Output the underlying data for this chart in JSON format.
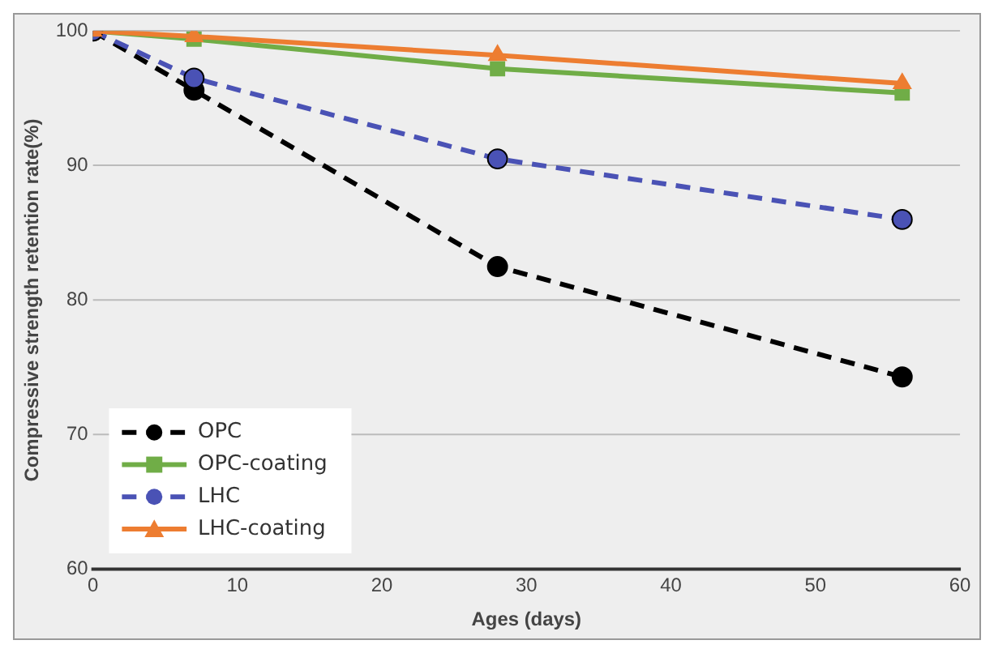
{
  "chart_data": {
    "type": "line",
    "xlabel": "Ages (days)",
    "ylabel": "Compressive strength retention rate(%)",
    "xlim": [
      0,
      60
    ],
    "xticks": [
      0,
      10,
      20,
      30,
      40,
      50,
      60
    ],
    "ylim": [
      60,
      100
    ],
    "yticks": [
      60,
      70,
      80,
      90,
      100
    ],
    "grid": "y",
    "legend": "bottom left",
    "x": [
      0,
      7,
      28,
      56
    ],
    "series": [
      {
        "name": "OPC",
        "color": "#000000",
        "values": [
          100,
          95.6,
          82.5,
          74.3
        ],
        "marker": "circle",
        "line_style": "dashed"
      },
      {
        "name": "OPC-coating",
        "color": "#70ad47",
        "values": [
          100,
          99.4,
          97.2,
          95.4
        ],
        "marker": "square",
        "line_style": "solid"
      },
      {
        "name": "LHC",
        "color": "#4a52b5",
        "values": [
          100,
          96.5,
          90.5,
          86.0
        ],
        "marker": "circle",
        "line_style": "dashed"
      },
      {
        "name": "LHC-coating",
        "color": "#ed7d31",
        "values": [
          100,
          99.6,
          98.2,
          96.1
        ],
        "marker": "triangle",
        "line_style": "solid"
      }
    ]
  }
}
